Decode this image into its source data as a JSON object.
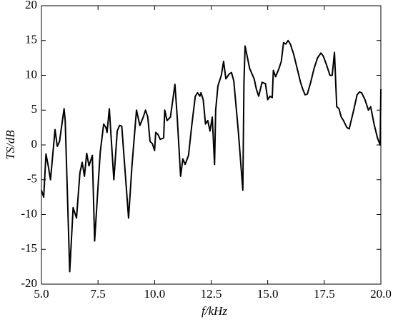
{
  "chart_data": {
    "type": "line",
    "xlabel": "f/kHz",
    "ylabel": "TS/dB",
    "xlim": [
      5,
      20
    ],
    "ylim": [
      -20,
      20
    ],
    "xticks": [
      {
        "value": 5,
        "label": "5.0"
      },
      7.5,
      {
        "value": 10,
        "label": "10.0"
      },
      12.5,
      {
        "value": 15,
        "label": "15.0"
      },
      17.5,
      {
        "value": 20,
        "label": "20.0"
      }
    ],
    "yticks": [
      -20,
      -15,
      -10,
      -5,
      0,
      5,
      10,
      15,
      20
    ],
    "grid": false,
    "series": [
      {
        "color": "#000000",
        "x": [
          5.0,
          5.1,
          5.2,
          5.3,
          5.4,
          5.6,
          5.7,
          5.8,
          6.0,
          6.05,
          6.25,
          6.4,
          6.55,
          6.7,
          6.8,
          6.9,
          7.0,
          7.1,
          7.25,
          7.35,
          7.5,
          7.6,
          7.75,
          7.85,
          7.9,
          8.0,
          8.2,
          8.35,
          8.45,
          8.55,
          8.85,
          9.0,
          9.2,
          9.35,
          9.5,
          9.6,
          9.7,
          9.8,
          9.9,
          10.0,
          10.05,
          10.15,
          10.25,
          10.4,
          10.45,
          10.55,
          10.7,
          10.9,
          11.0,
          11.15,
          11.25,
          11.35,
          11.5,
          11.65,
          11.8,
          11.9,
          12.0,
          12.05,
          12.15,
          12.25,
          12.35,
          12.45,
          12.55,
          12.65,
          12.7,
          12.8,
          12.95,
          13.05,
          13.15,
          13.3,
          13.4,
          13.5,
          13.7,
          13.9,
          13.95,
          14.0,
          14.2,
          14.4,
          14.5,
          14.6,
          14.75,
          14.9,
          15.0,
          15.1,
          15.2,
          15.25,
          15.35,
          15.5,
          15.6,
          15.7,
          15.8,
          15.9,
          16.0,
          16.15,
          16.3,
          16.45,
          16.55,
          16.65,
          16.75,
          16.9,
          17.05,
          17.2,
          17.35,
          17.45,
          17.6,
          17.75,
          17.85,
          17.95,
          18.05,
          18.15,
          18.25,
          18.35,
          18.5,
          18.6,
          18.8,
          18.95,
          19.05,
          19.15,
          19.3,
          19.45,
          19.55,
          19.7,
          19.85,
          19.97,
          20.0
        ],
        "values": [
          -6.5,
          -7.5,
          -1.3,
          -3,
          -5,
          2.2,
          -0.2,
          0.5,
          5.2,
          3.5,
          -18.2,
          -9,
          -10.5,
          -4,
          -2.5,
          -4.5,
          -1.2,
          -3,
          -1.5,
          -13.8,
          -6,
          -1,
          3,
          2.5,
          1.8,
          5.2,
          -5,
          2,
          2.8,
          2.7,
          -10.5,
          -3,
          5,
          2.8,
          4,
          5,
          4,
          0.5,
          0.2,
          -0.8,
          1.8,
          1.5,
          0.8,
          1,
          5,
          3.5,
          4,
          8.7,
          4,
          -4.5,
          -2,
          -2.8,
          -1.5,
          3,
          7,
          7.5,
          7,
          7.5,
          6.5,
          3,
          3.5,
          2,
          4,
          -2.8,
          5,
          8.5,
          10,
          12,
          9.5,
          10.2,
          10.4,
          9.2,
          2,
          -6.5,
          9,
          14.2,
          11,
          9.5,
          8,
          7,
          9,
          8.8,
          6.5,
          7,
          6.8,
          10.7,
          9.8,
          11,
          12,
          14.7,
          14.5,
          15,
          14.5,
          13,
          11,
          9,
          8,
          7.2,
          7.3,
          9,
          11,
          12.5,
          13.2,
          12.8,
          11.5,
          10,
          10,
          13.3,
          5.5,
          5.2,
          4,
          3.5,
          2.5,
          2.3,
          5,
          7.2,
          7.6,
          7.5,
          6.5,
          5,
          5.5,
          3,
          1,
          0,
          8
        ]
      }
    ]
  }
}
